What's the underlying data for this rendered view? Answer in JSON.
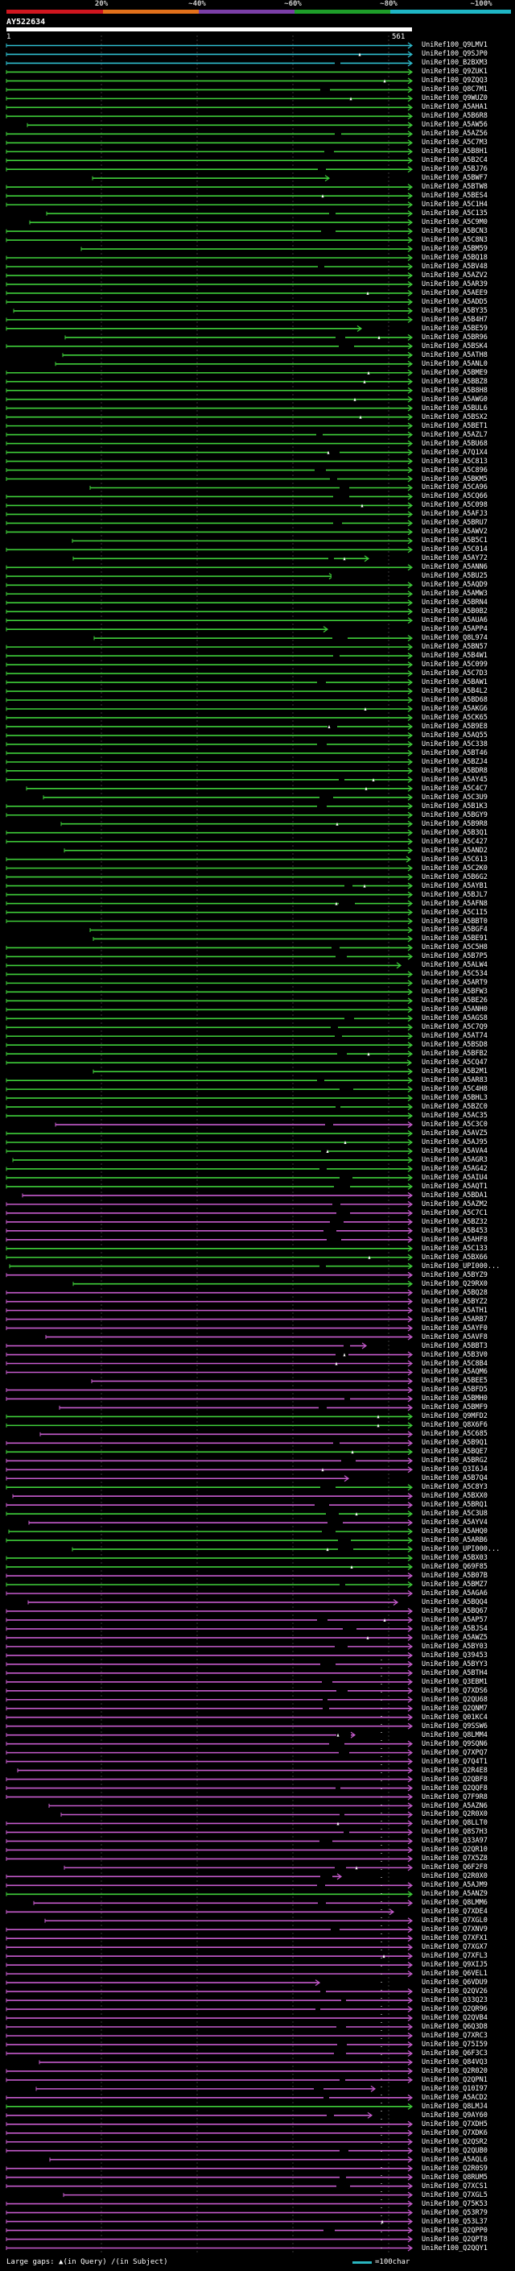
{
  "header": {
    "scale_labels": [
      "20%",
      "~40%",
      "~60%",
      "~80%",
      "~100%"
    ],
    "scale_colors": [
      "#d0161f",
      "#e3711b",
      "#7b3fa8",
      "#1e9e2a",
      "#1fb6c6"
    ],
    "query_id": "AY522634",
    "query_start": "1",
    "query_end": "561"
  },
  "colors": {
    "cyan": "#2fbfd1",
    "green": "#3fcf3a",
    "magenta": "#c65bcd",
    "grid": "#3a3a3a"
  },
  "hits": [
    {
      "label": "UniRef100_Q9LMV1",
      "c": "cyan"
    },
    {
      "label": "UniRef100_Q9SJP0",
      "c": "cyan"
    },
    {
      "label": "UniRef100_B2BXM3",
      "c": "cyan"
    },
    {
      "label": "UniRef100_Q9ZUK1",
      "c": "green"
    },
    {
      "label": "UniRef100_Q9ZQQ3",
      "c": "green"
    },
    {
      "label": "UniRef100_Q8C7M1",
      "c": "green"
    },
    {
      "label": "UniRef100_Q9WUZ0",
      "c": "green"
    },
    {
      "label": "UniRef100_A5AHA1",
      "c": "green"
    },
    {
      "label": "UniRef100_A5B6R8",
      "c": "green"
    },
    {
      "label": "UniRef100_A5AW56",
      "c": "green"
    },
    {
      "label": "UniRef100_A5AZ56",
      "c": "green"
    },
    {
      "label": "UniRef100_A5C7M3",
      "c": "green"
    },
    {
      "label": "UniRef100_A5B8H1",
      "c": "green"
    },
    {
      "label": "UniRef100_A5B2C4",
      "c": "green"
    },
    {
      "label": "UniRef100_A5BJ76",
      "c": "green"
    },
    {
      "label": "UniRef100_A5BWF7",
      "c": "green"
    },
    {
      "label": "UniRef100_A5BTW8",
      "c": "green"
    },
    {
      "label": "UniRef100_A5BES4",
      "c": "green"
    },
    {
      "label": "UniRef100_A5C1H4",
      "c": "green"
    },
    {
      "label": "UniRef100_A5C135",
      "c": "green"
    },
    {
      "label": "UniRef100_A5C9M0",
      "c": "green"
    },
    {
      "label": "UniRef100_A5BCN3",
      "c": "green"
    },
    {
      "label": "UniRef100_A5C8N3",
      "c": "green"
    },
    {
      "label": "UniRef100_A5BM59",
      "c": "green"
    },
    {
      "label": "UniRef100_A5BQ18",
      "c": "green"
    },
    {
      "label": "UniRef100_A5BV48",
      "c": "green"
    },
    {
      "label": "UniRef100_A5AZV2",
      "c": "green"
    },
    {
      "label": "UniRef100_A5AR39",
      "c": "green"
    },
    {
      "label": "UniRef100_A5AEE9",
      "c": "green"
    },
    {
      "label": "UniRef100_A5ADD5",
      "c": "green"
    },
    {
      "label": "UniRef100_A5BY35",
      "c": "green"
    },
    {
      "label": "UniRef100_A5B4H7",
      "c": "green"
    },
    {
      "label": "UniRef100_A5BE59",
      "c": "green"
    },
    {
      "label": "UniRef100_A5BR96",
      "c": "green"
    },
    {
      "label": "UniRef100_A5BSK4",
      "c": "green"
    },
    {
      "label": "UniRef100_A5ATH8",
      "c": "green"
    },
    {
      "label": "UniRef100_A5ANL0",
      "c": "green"
    },
    {
      "label": "UniRef100_A5BME9",
      "c": "green"
    },
    {
      "label": "UniRef100_A5BBZ8",
      "c": "green"
    },
    {
      "label": "UniRef100_A5B8H8",
      "c": "green"
    },
    {
      "label": "UniRef100_A5AWG0",
      "c": "green"
    },
    {
      "label": "UniRef100_A5BUL6",
      "c": "green"
    },
    {
      "label": "UniRef100_A5BSX2",
      "c": "green"
    },
    {
      "label": "UniRef100_A5BET1",
      "c": "green"
    },
    {
      "label": "UniRef100_A5AZL7",
      "c": "green"
    },
    {
      "label": "UniRef100_A5BU68",
      "c": "green"
    },
    {
      "label": "UniRef100_A7Q1X4",
      "c": "green"
    },
    {
      "label": "UniRef100_A5C813",
      "c": "green"
    },
    {
      "label": "UniRef100_A5C896",
      "c": "green"
    },
    {
      "label": "UniRef100_A5BKM5",
      "c": "green"
    },
    {
      "label": "UniRef100_A5CA96",
      "c": "green"
    },
    {
      "label": "UniRef100_A5CQ66",
      "c": "green"
    },
    {
      "label": "UniRef100_A5C098",
      "c": "green"
    },
    {
      "label": "UniRef100_A5AFJ3",
      "c": "green"
    },
    {
      "label": "UniRef100_A5BRU7",
      "c": "green"
    },
    {
      "label": "UniRef100_A5AWV2",
      "c": "green"
    },
    {
      "label": "UniRef100_A5B5C1",
      "c": "green"
    },
    {
      "label": "UniRef100_A5C014",
      "c": "green"
    },
    {
      "label": "UniRef100_A5AY72",
      "c": "green"
    },
    {
      "label": "UniRef100_A5ANN6",
      "c": "green"
    },
    {
      "label": "UniRef100_A5BU25",
      "c": "green"
    },
    {
      "label": "UniRef100_A5AQD9",
      "c": "green"
    },
    {
      "label": "UniRef100_A5AMW3",
      "c": "green"
    },
    {
      "label": "UniRef100_A5BRN4",
      "c": "green"
    },
    {
      "label": "UniRef100_A5B0B2",
      "c": "green"
    },
    {
      "label": "UniRef100_A5AUA6",
      "c": "green"
    },
    {
      "label": "UniRef100_A5APP4",
      "c": "green"
    },
    {
      "label": "UniRef100_Q8L974",
      "c": "green"
    },
    {
      "label": "UniRef100_A5BN57",
      "c": "green"
    },
    {
      "label": "UniRef100_A5B4W1",
      "c": "green"
    },
    {
      "label": "UniRef100_A5C099",
      "c": "green"
    },
    {
      "label": "UniRef100_A5C7D3",
      "c": "green"
    },
    {
      "label": "UniRef100_A5BAW1",
      "c": "green"
    },
    {
      "label": "UniRef100_A5B4L2",
      "c": "green"
    },
    {
      "label": "UniRef100_A5BD68",
      "c": "green"
    },
    {
      "label": "UniRef100_A5AKG6",
      "c": "green"
    },
    {
      "label": "UniRef100_A5CK65",
      "c": "green"
    },
    {
      "label": "UniRef100_A5B9E8",
      "c": "green"
    },
    {
      "label": "UniRef100_A5AQ55",
      "c": "green"
    },
    {
      "label": "UniRef100_A5C338",
      "c": "green"
    },
    {
      "label": "UniRef100_A5BT46",
      "c": "green"
    },
    {
      "label": "UniRef100_A5BZJ4",
      "c": "green"
    },
    {
      "label": "UniRef100_A5BDR8",
      "c": "green"
    },
    {
      "label": "UniRef100_A5AY45",
      "c": "green"
    },
    {
      "label": "UniRef100_A5C4C7",
      "c": "green"
    },
    {
      "label": "UniRef100_A5C3U9",
      "c": "green"
    },
    {
      "label": "UniRef100_A5B1K3",
      "c": "green"
    },
    {
      "label": "UniRef100_A5BGY9",
      "c": "green"
    },
    {
      "label": "UniRef100_A5B9R8",
      "c": "green"
    },
    {
      "label": "UniRef100_A5B3Q1",
      "c": "green"
    },
    {
      "label": "UniRef100_A5C427",
      "c": "green"
    },
    {
      "label": "UniRef100_A5AND2",
      "c": "green"
    },
    {
      "label": "UniRef100_A5C613",
      "c": "green"
    },
    {
      "label": "UniRef100_A5C2K0",
      "c": "green"
    },
    {
      "label": "UniRef100_A5B6G2",
      "c": "green"
    },
    {
      "label": "UniRef100_A5AYB1",
      "c": "green"
    },
    {
      "label": "UniRef100_A5BJL7",
      "c": "green"
    },
    {
      "label": "UniRef100_A5AFN8",
      "c": "green"
    },
    {
      "label": "UniRef100_A5C1I5",
      "c": "green"
    },
    {
      "label": "UniRef100_A5BBT0",
      "c": "green"
    },
    {
      "label": "UniRef100_A5BGF4",
      "c": "green"
    },
    {
      "label": "UniRef100_A5BE91",
      "c": "green"
    },
    {
      "label": "UniRef100_A5C5H8",
      "c": "green"
    },
    {
      "label": "UniRef100_A5B7P5",
      "c": "green"
    },
    {
      "label": "UniRef100_A5ALW4",
      "c": "green"
    },
    {
      "label": "UniRef100_A5C534",
      "c": "green"
    },
    {
      "label": "UniRef100_A5ART9",
      "c": "green"
    },
    {
      "label": "UniRef100_A5BFW3",
      "c": "green"
    },
    {
      "label": "UniRef100_A5BE26",
      "c": "green"
    },
    {
      "label": "UniRef100_A5ANH0",
      "c": "green"
    },
    {
      "label": "UniRef100_A5AGS8",
      "c": "green"
    },
    {
      "label": "UniRef100_A5C7Q9",
      "c": "green"
    },
    {
      "label": "UniRef100_A5AT74",
      "c": "green"
    },
    {
      "label": "UniRef100_A5BSD8",
      "c": "green"
    },
    {
      "label": "UniRef100_A5BFB2",
      "c": "green"
    },
    {
      "label": "UniRef100_A5CQ47",
      "c": "green"
    },
    {
      "label": "UniRef100_A5B2M1",
      "c": "green"
    },
    {
      "label": "UniRef100_A5AR83",
      "c": "green"
    },
    {
      "label": "UniRef100_A5C4H8",
      "c": "green"
    },
    {
      "label": "UniRef100_A5BHL3",
      "c": "green"
    },
    {
      "label": "UniRef100_A5BZC0",
      "c": "green"
    },
    {
      "label": "UniRef100_A5AC35",
      "c": "green"
    },
    {
      "label": "UniRef100_A5C3C0",
      "c": "magenta"
    },
    {
      "label": "UniRef100_A5AVZ5",
      "c": "green"
    },
    {
      "label": "UniRef100_A5AJ95",
      "c": "green"
    },
    {
      "label": "UniRef100_A5AVA4",
      "c": "green"
    },
    {
      "label": "UniRef100_A5AGR3",
      "c": "green"
    },
    {
      "label": "UniRef100_A5AG42",
      "c": "green"
    },
    {
      "label": "UniRef100_A5AIU4",
      "c": "green"
    },
    {
      "label": "UniRef100_A5AQT1",
      "c": "green"
    },
    {
      "label": "UniRef100_A5BDA1",
      "c": "magenta"
    },
    {
      "label": "UniRef100_A5AZM2",
      "c": "magenta"
    },
    {
      "label": "UniRef100_A5C7C1",
      "c": "magenta"
    },
    {
      "label": "UniRef100_A5BZ32",
      "c": "magenta"
    },
    {
      "label": "UniRef100_A5B453",
      "c": "magenta"
    },
    {
      "label": "UniRef100_A5AHF8",
      "c": "magenta"
    },
    {
      "label": "UniRef100_A5C133",
      "c": "green"
    },
    {
      "label": "UniRef100_A5BX66",
      "c": "green"
    },
    {
      "label": "UniRef100_UPI000...",
      "c": "green"
    },
    {
      "label": "UniRef100_A5BYZ9",
      "c": "magenta"
    },
    {
      "label": "UniRef100_Q29RX0",
      "c": "green"
    },
    {
      "label": "UniRef100_A5BQ28",
      "c": "magenta"
    },
    {
      "label": "UniRef100_A5BYZ2",
      "c": "magenta"
    },
    {
      "label": "UniRef100_A5ATH1",
      "c": "magenta"
    },
    {
      "label": "UniRef100_A5ARB7",
      "c": "magenta"
    },
    {
      "label": "UniRef100_A5AYF0",
      "c": "magenta"
    },
    {
      "label": "UniRef100_A5AVF8",
      "c": "magenta"
    },
    {
      "label": "UniRef100_A5BBT3",
      "c": "magenta"
    },
    {
      "label": "UniRef100_A5B3V0",
      "c": "magenta"
    },
    {
      "label": "UniRef100_A5C8B4",
      "c": "magenta"
    },
    {
      "label": "UniRef100_A5AQM6",
      "c": "magenta"
    },
    {
      "label": "UniRef100_A5BEE5",
      "c": "magenta"
    },
    {
      "label": "UniRef100_A5BFD5",
      "c": "magenta"
    },
    {
      "label": "UniRef100_A5BMH0",
      "c": "magenta"
    },
    {
      "label": "UniRef100_A5BMF9",
      "c": "magenta"
    },
    {
      "label": "UniRef100_Q9MFD2",
      "c": "green"
    },
    {
      "label": "UniRef100_Q8X6F6",
      "c": "green"
    },
    {
      "label": "UniRef100_A5C685",
      "c": "magenta"
    },
    {
      "label": "UniRef100_A5B9Q1",
      "c": "magenta"
    },
    {
      "label": "UniRef100_A5BQE7",
      "c": "green"
    },
    {
      "label": "UniRef100_A5BRG2",
      "c": "magenta"
    },
    {
      "label": "UniRef100_Q3I6J4",
      "c": "magenta"
    },
    {
      "label": "UniRef100_A5B7Q4",
      "c": "magenta"
    },
    {
      "label": "UniRef100_A5C8Y3",
      "c": "green"
    },
    {
      "label": "UniRef100_A5BXX0",
      "c": "magenta"
    },
    {
      "label": "UniRef100_A5BRQ1",
      "c": "magenta"
    },
    {
      "label": "UniRef100_A5C3U8",
      "c": "green"
    },
    {
      "label": "UniRef100_A5AYV4",
      "c": "magenta"
    },
    {
      "label": "UniRef100_A5AHQ0",
      "c": "green"
    },
    {
      "label": "UniRef100_A5ARB6",
      "c": "green"
    },
    {
      "label": "UniRef100_UPI000...",
      "c": "green"
    },
    {
      "label": "UniRef100_A5BX03",
      "c": "green"
    },
    {
      "label": "UniRef100_Q69F85",
      "c": "green"
    },
    {
      "label": "UniRef100_A5B07B",
      "c": "magenta"
    },
    {
      "label": "UniRef100_A5BMZ7",
      "c": "green"
    },
    {
      "label": "UniRef100_A5AGA6",
      "c": "magenta"
    },
    {
      "label": "UniRef100_A5BQQ4",
      "c": "magenta"
    },
    {
      "label": "UniRef100_A5BQ67",
      "c": "magenta"
    },
    {
      "label": "UniRef100_A5AP57",
      "c": "magenta"
    },
    {
      "label": "UniRef100_A5BJS4",
      "c": "magenta"
    },
    {
      "label": "UniRef100_A5AWZ5",
      "c": "magenta"
    },
    {
      "label": "UniRef100_A5BY03",
      "c": "magenta"
    },
    {
      "label": "UniRef100_Q39453",
      "c": "magenta"
    },
    {
      "label": "UniRef100_A5BYY3",
      "c": "magenta"
    },
    {
      "label": "UniRef100_A5BTH4",
      "c": "magenta"
    },
    {
      "label": "UniRef100_Q3EBM1",
      "c": "magenta"
    },
    {
      "label": "UniRef100_Q7XDS6",
      "c": "magenta"
    },
    {
      "label": "UniRef100_Q2QU68",
      "c": "magenta"
    },
    {
      "label": "UniRef100_Q2QNM7",
      "c": "magenta"
    },
    {
      "label": "UniRef100_Q01KC4",
      "c": "magenta"
    },
    {
      "label": "UniRef100_Q9SSW6",
      "c": "magenta"
    },
    {
      "label": "UniRef100_Q8LMM4",
      "c": "magenta"
    },
    {
      "label": "UniRef100_Q9SQN6",
      "c": "magenta"
    },
    {
      "label": "UniRef100_Q7XPQ7",
      "c": "magenta"
    },
    {
      "label": "UniRef100_Q7Q4T1",
      "c": "magenta"
    },
    {
      "label": "UniRef100_Q2R4E8",
      "c": "magenta"
    },
    {
      "label": "UniRef100_Q2QBF8",
      "c": "magenta"
    },
    {
      "label": "UniRef100_Q2QQF8",
      "c": "magenta"
    },
    {
      "label": "UniRef100_Q7F9R8",
      "c": "magenta"
    },
    {
      "label": "UniRef100_A5AZN6",
      "c": "magenta"
    },
    {
      "label": "UniRef100_Q2R0X0",
      "c": "magenta"
    },
    {
      "label": "UniRef100_Q8LLT0",
      "c": "magenta"
    },
    {
      "label": "UniRef100_Q8S7H3",
      "c": "magenta"
    },
    {
      "label": "UniRef100_Q33A97",
      "c": "magenta"
    },
    {
      "label": "UniRef100_Q2QR10",
      "c": "magenta"
    },
    {
      "label": "UniRef100_Q7X5Z8",
      "c": "magenta"
    },
    {
      "label": "UniRef100_Q6F2F8",
      "c": "magenta"
    },
    {
      "label": "UniRef100_Q2R0X0",
      "c": "magenta"
    },
    {
      "label": "UniRef100_A5AJM9",
      "c": "magenta"
    },
    {
      "label": "UniRef100_A5ANZ9",
      "c": "green"
    },
    {
      "label": "UniRef100_Q8LMM6",
      "c": "magenta"
    },
    {
      "label": "UniRef100_Q7XDE4",
      "c": "magenta"
    },
    {
      "label": "UniRef100_Q7XGL0",
      "c": "magenta"
    },
    {
      "label": "UniRef100_Q7XNV9",
      "c": "magenta"
    },
    {
      "label": "UniRef100_Q7XFX1",
      "c": "magenta"
    },
    {
      "label": "UniRef100_Q7XGX7",
      "c": "magenta"
    },
    {
      "label": "UniRef100_Q7XFL3",
      "c": "magenta"
    },
    {
      "label": "UniRef100_Q9XIJ5",
      "c": "magenta"
    },
    {
      "label": "UniRef100_Q6VEL1",
      "c": "magenta"
    },
    {
      "label": "UniRef100_Q6VDU9",
      "c": "magenta"
    },
    {
      "label": "UniRef100_Q2QV26",
      "c": "magenta"
    },
    {
      "label": "UniRef100_Q33Q23",
      "c": "magenta"
    },
    {
      "label": "UniRef100_Q2QR96",
      "c": "magenta"
    },
    {
      "label": "UniRef100_Q2QVB4",
      "c": "magenta"
    },
    {
      "label": "UniRef100_Q6Q3D8",
      "c": "magenta"
    },
    {
      "label": "UniRef100_Q7XRC3",
      "c": "magenta"
    },
    {
      "label": "UniRef100_Q75I59",
      "c": "magenta"
    },
    {
      "label": "UniRef100_Q6F3C3",
      "c": "magenta"
    },
    {
      "label": "UniRef100_Q84VQ3",
      "c": "magenta"
    },
    {
      "label": "UniRef100_Q2R020",
      "c": "magenta"
    },
    {
      "label": "UniRef100_Q2QPN1",
      "c": "magenta"
    },
    {
      "label": "UniRef100_Q10I97",
      "c": "magenta"
    },
    {
      "label": "UniRef100_A5ACD2",
      "c": "magenta"
    },
    {
      "label": "UniRef100_Q8LMJ4",
      "c": "green"
    },
    {
      "label": "UniRef100_Q9AY60",
      "c": "magenta"
    },
    {
      "label": "UniRef100_Q7XDH5",
      "c": "magenta"
    },
    {
      "label": "UniRef100_Q7XDK6",
      "c": "magenta"
    },
    {
      "label": "UniRef100_Q2QSR2",
      "c": "magenta"
    },
    {
      "label": "UniRef100_Q2QUB0",
      "c": "magenta"
    },
    {
      "label": "UniRef100_A5AQL6",
      "c": "magenta"
    },
    {
      "label": "UniRef100_Q2R0S9",
      "c": "magenta"
    },
    {
      "label": "UniRef100_Q8RUM5",
      "c": "magenta"
    },
    {
      "label": "UniRef100_Q7XCS1",
      "c": "magenta"
    },
    {
      "label": "UniRef100_Q7XGL5",
      "c": "magenta"
    },
    {
      "label": "UniRef100_Q75K53",
      "c": "magenta"
    },
    {
      "label": "UniRef100_Q53R79",
      "c": "magenta"
    },
    {
      "label": "UniRef100_Q53L37",
      "c": "magenta"
    },
    {
      "label": "UniRef100_Q2QPP0",
      "c": "magenta"
    },
    {
      "label": "UniRef100_Q2QPT8",
      "c": "magenta"
    },
    {
      "label": "UniRef100_Q2QQY1",
      "c": "magenta"
    }
  ],
  "footer": {
    "large_gaps_label": "Large gaps:",
    "gap_query_text": "(in Query)",
    "gap_subject_text": "(in Subject)",
    "scale_text": "=100char"
  }
}
